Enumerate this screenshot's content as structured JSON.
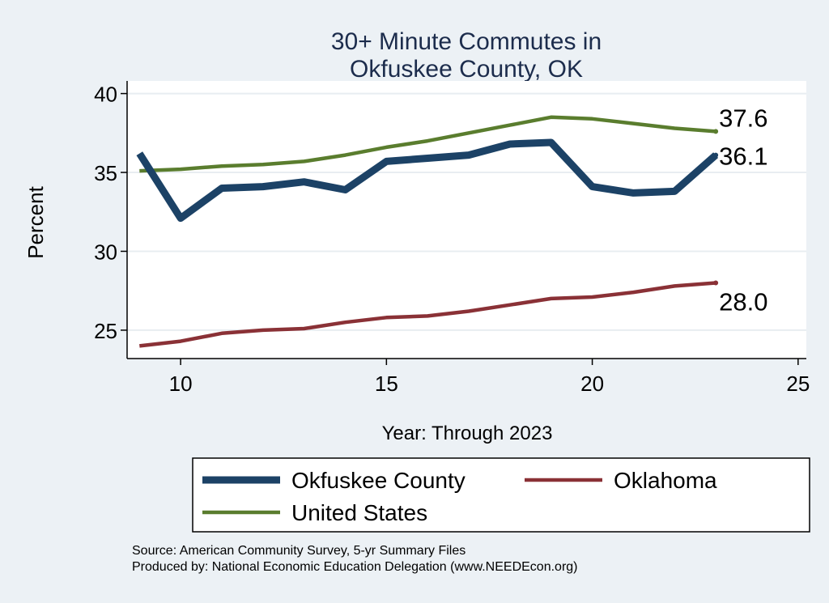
{
  "chart_data": {
    "type": "line",
    "title_lines": [
      "30+ Minute Commutes in",
      "Okfuskee County, OK"
    ],
    "xlabel": "Year: Through 2023",
    "ylabel": "Percent",
    "xlim": [
      8.7,
      25.2
    ],
    "ylim": [
      23.2,
      40.8
    ],
    "xticks": [
      10,
      15,
      20,
      25
    ],
    "yticks": [
      25,
      30,
      35,
      40
    ],
    "x": [
      9,
      10,
      11,
      12,
      13,
      14,
      15,
      16,
      17,
      18,
      19,
      20,
      21,
      22,
      23
    ],
    "series": [
      {
        "name": "Okfuskee County",
        "color": "#1c4266",
        "values": [
          36.2,
          32.1,
          34.0,
          34.1,
          34.4,
          33.9,
          35.7,
          35.9,
          36.1,
          36.8,
          36.9,
          34.1,
          33.7,
          33.8,
          36.1
        ],
        "end_label": "36.1"
      },
      {
        "name": "Oklahoma",
        "color": "#8a3136",
        "values": [
          24.0,
          24.3,
          24.8,
          25.0,
          25.1,
          25.5,
          25.8,
          25.9,
          26.2,
          26.6,
          27.0,
          27.1,
          27.4,
          27.8,
          28.0
        ],
        "end_label": "28.0"
      },
      {
        "name": "United States",
        "color": "#5a7d2e",
        "values": [
          35.1,
          35.2,
          35.4,
          35.5,
          35.7,
          36.1,
          36.6,
          37.0,
          37.5,
          38.0,
          38.5,
          38.4,
          38.1,
          37.8,
          37.6
        ],
        "end_label": "37.6"
      }
    ],
    "legend": [
      "Okfuskee County",
      "Oklahoma",
      "United States"
    ],
    "grid": true
  },
  "footnotes": {
    "source": "Source: American Community Survey, 5-yr Summary Files",
    "producer": "Produced by: National Economic Education Delegation (www.NEEDEcon.org)"
  }
}
